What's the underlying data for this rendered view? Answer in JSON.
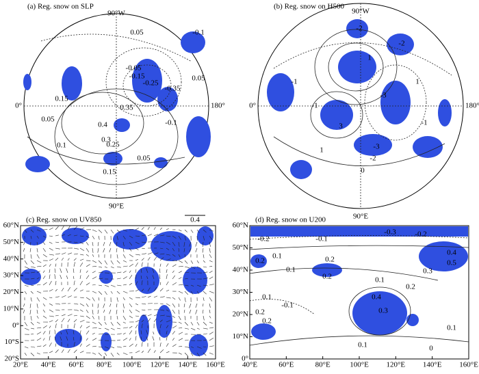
{
  "polar_panels": [
    {
      "title": "(a) Reg. snow on SLP",
      "top": "90°W",
      "left": "0°",
      "right": "180°",
      "bottom": "90°E",
      "contour_labels": [
        "0.05",
        "-0.1",
        "-0.05",
        "-0.15",
        "-0.25",
        "-0.35",
        "0.15",
        "0.35",
        "0.4",
        "0.3",
        "0.25",
        "0.05",
        "0.1",
        "0.15",
        "0.05",
        "-0.1",
        "0.05"
      ]
    },
    {
      "title": "(b) Reg. snow on H500",
      "top": "90°W",
      "left": "0°",
      "right": "180°",
      "bottom": "90°E",
      "contour_labels": [
        "-2",
        "-2",
        "1",
        "-1",
        "3",
        "-3",
        "-1",
        "1",
        "-2",
        "-3",
        "0",
        "1",
        "-1"
      ]
    }
  ],
  "rect_panels": [
    {
      "title": "(c) Reg. snow on UV850",
      "reference_vector": "0.4",
      "xlim": [
        20,
        160
      ],
      "ylim": [
        -20,
        60
      ],
      "xticks": [
        {
          "value": 20,
          "label": "20°E"
        },
        {
          "value": 40,
          "label": "40°E"
        },
        {
          "value": 60,
          "label": "60°E"
        },
        {
          "value": 80,
          "label": "80°E"
        },
        {
          "value": 100,
          "label": "100°E"
        },
        {
          "value": 120,
          "label": "120°E"
        },
        {
          "value": 140,
          "label": "140°E"
        },
        {
          "value": 160,
          "label": "160°E"
        }
      ],
      "yticks": [
        {
          "value": 60,
          "label": "60°N"
        },
        {
          "value": 50,
          "label": "50°N"
        },
        {
          "value": 40,
          "label": "40°N"
        },
        {
          "value": 30,
          "label": "30°N"
        },
        {
          "value": 20,
          "label": "20°N"
        },
        {
          "value": 10,
          "label": "10°N"
        },
        {
          "value": 0,
          "label": "0°"
        },
        {
          "value": -10,
          "label": "10°S"
        },
        {
          "value": -20,
          "label": "20°S"
        }
      ],
      "contour_labels": []
    },
    {
      "title": "(d) Reg. snow on U200",
      "xlim": [
        40,
        160
      ],
      "ylim": [
        0,
        60
      ],
      "xticks": [
        {
          "value": 40,
          "label": "40°E"
        },
        {
          "value": 60,
          "label": "60°E"
        },
        {
          "value": 80,
          "label": "80°E"
        },
        {
          "value": 100,
          "label": "100°E"
        },
        {
          "value": 120,
          "label": "120°E"
        },
        {
          "value": 140,
          "label": "140°E"
        },
        {
          "value": 160,
          "label": "160°E"
        }
      ],
      "yticks": [
        {
          "value": 60,
          "label": "60°N"
        },
        {
          "value": 50,
          "label": "50°N"
        },
        {
          "value": 40,
          "label": "40°N"
        },
        {
          "value": 30,
          "label": "30°N"
        },
        {
          "value": 20,
          "label": "20°N"
        },
        {
          "value": 10,
          "label": "10°N"
        },
        {
          "value": 0,
          "label": "0°"
        }
      ],
      "contour_labels": [
        "-0.2",
        "-0.3",
        "-0.2",
        "-0.1",
        "0.1",
        "0.2",
        "0.1",
        "0.2",
        "0.2",
        "0.4",
        "0.5",
        "0.3",
        "0.1",
        "0.2",
        "0.1",
        "0.4",
        "0.3",
        "-0.1",
        "0.2",
        "0.2",
        "0.1",
        "0.1",
        "0"
      ]
    }
  ]
}
